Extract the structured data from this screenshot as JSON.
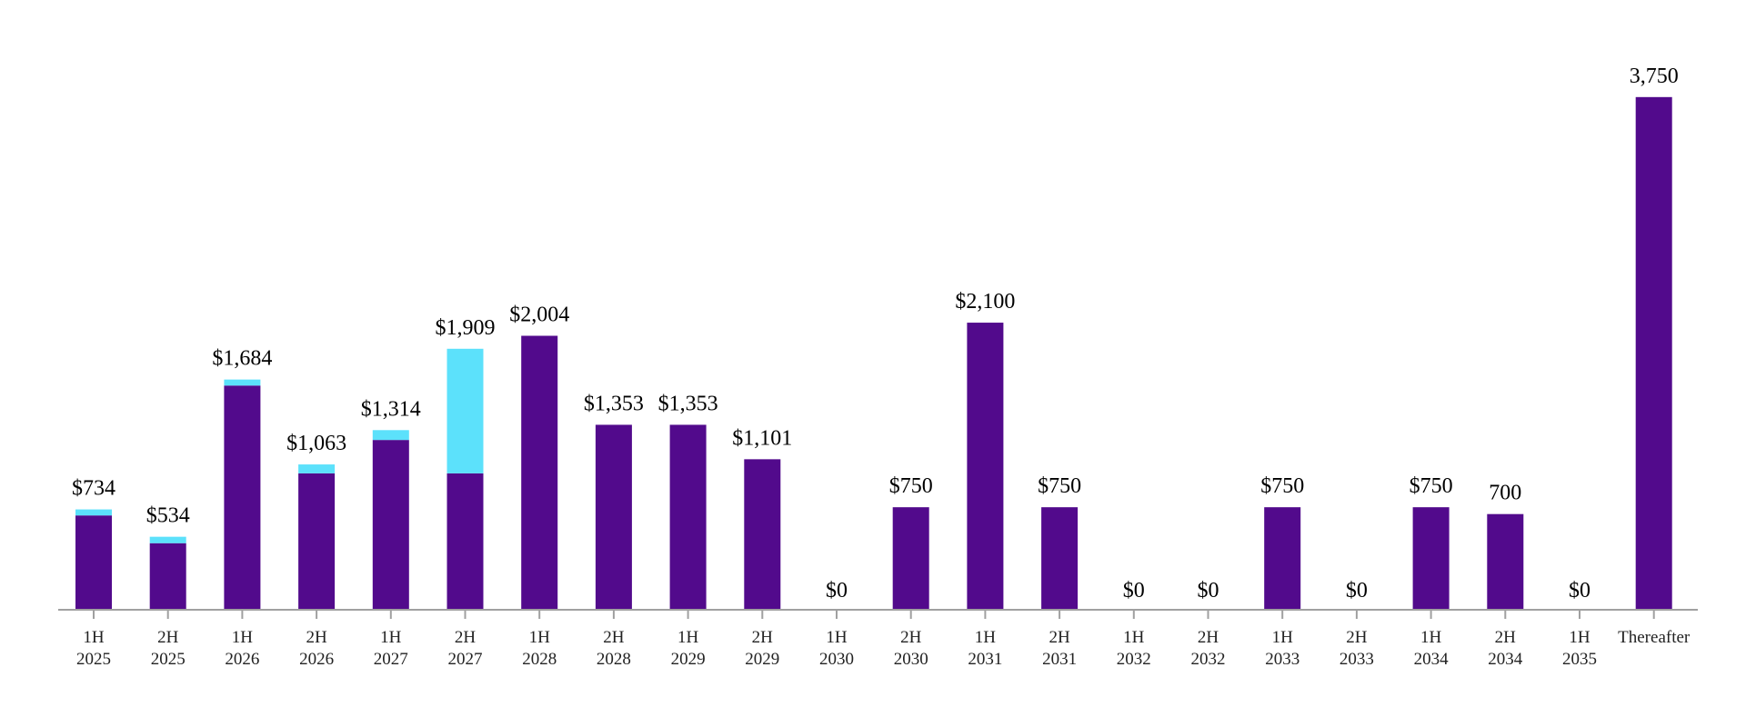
{
  "chart_data": {
    "type": "bar",
    "stacked": true,
    "title": "",
    "xlabel": "",
    "ylabel": "",
    "ylim": [
      0,
      4460
    ],
    "grid": false,
    "legend": "none",
    "colors": {
      "primary": "#520a8c",
      "secondary": "#5ce1fb",
      "axis": "#a0a0a0"
    },
    "categories": [
      [
        "1H",
        "2025"
      ],
      [
        "2H",
        "2025"
      ],
      [
        "1H",
        "2026"
      ],
      [
        "2H",
        "2026"
      ],
      [
        "1H",
        "2027"
      ],
      [
        "2H",
        "2027"
      ],
      [
        "1H",
        "2028"
      ],
      [
        "2H",
        "2028"
      ],
      [
        "1H",
        "2029"
      ],
      [
        "2H",
        "2029"
      ],
      [
        "1H",
        "2030"
      ],
      [
        "2H",
        "2030"
      ],
      [
        "1H",
        "2031"
      ],
      [
        "2H",
        "2031"
      ],
      [
        "1H",
        "2032"
      ],
      [
        "2H",
        "2032"
      ],
      [
        "1H",
        "2033"
      ],
      [
        "2H",
        "2033"
      ],
      [
        "1H",
        "2034"
      ],
      [
        "2H",
        "2034"
      ],
      [
        "1H",
        "2035"
      ],
      [
        "Thereafter",
        ""
      ]
    ],
    "series": [
      {
        "values": [
          690,
          487,
          1640,
          998,
          1242,
          998,
          2004,
          1353,
          1353,
          1101,
          0,
          750,
          2100,
          750,
          0,
          0,
          750,
          0,
          750,
          700,
          0,
          3750
        ]
      },
      {
        "values": [
          44,
          47,
          44,
          65,
          72,
          911,
          0,
          0,
          0,
          0,
          0,
          0,
          0,
          0,
          0,
          0,
          0,
          0,
          0,
          0,
          0,
          0
        ]
      }
    ],
    "data_labels": [
      "$734",
      "$534",
      "$1,684",
      "$1,063",
      "$1,314",
      "$1,909",
      "$2,004",
      "$1,353",
      "$1,353",
      "$1,101",
      "$0",
      "$750",
      "$2,100",
      "$750",
      "$0",
      "$0",
      "$750",
      "$0",
      "$750",
      "700",
      "$0",
      "3,750"
    ]
  }
}
